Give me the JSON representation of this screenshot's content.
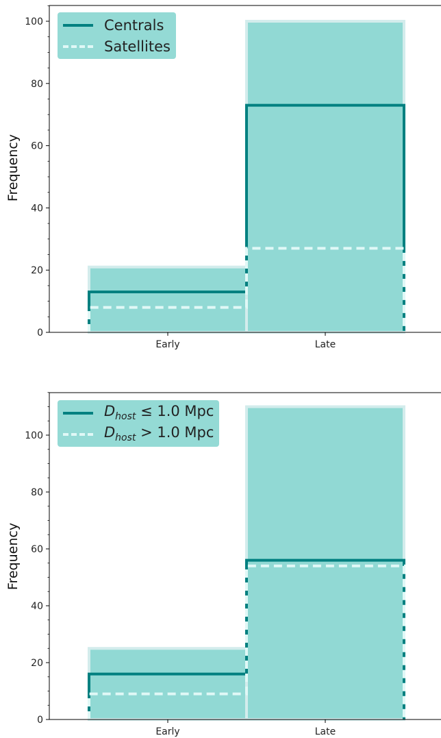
{
  "colors": {
    "bar_fill": "#91d9d4",
    "bar_edge": "#d3ecec",
    "centrals_line": "#008080",
    "satellites_line": "#e0f8f6",
    "legend_bg": "#91d9d4"
  },
  "chart_data": [
    {
      "type": "bar",
      "categories": [
        "Early",
        "Late"
      ],
      "series": [
        {
          "values": [
            21,
            100
          ]
        },
        {
          "name": "Centrals",
          "style": "solid",
          "values": [
            13,
            73
          ]
        },
        {
          "name": "Satellites",
          "style": "dashed",
          "values": [
            8,
            27
          ]
        }
      ],
      "xlabel": "",
      "ylabel": "Frequency",
      "ylim": [
        0,
        105
      ],
      "yticks": [
        0,
        20,
        40,
        60,
        80,
        100
      ],
      "grid": false,
      "legend_placement": "top-left"
    },
    {
      "type": "bar",
      "categories": [
        "Early",
        "Late"
      ],
      "series": [
        {
          "values": [
            25,
            110
          ]
        },
        {
          "name": "D_host ≤ 1.0 Mpc",
          "style": "solid",
          "values": [
            16,
            56
          ]
        },
        {
          "name": "D_host > 1.0 Mpc",
          "style": "dashed",
          "values": [
            9,
            54
          ]
        }
      ],
      "xlabel": "",
      "ylabel": "Frequency",
      "ylim": [
        0,
        115
      ],
      "yticks": [
        0,
        20,
        40,
        60,
        80,
        100
      ],
      "grid": false,
      "legend_placement": "top-left"
    }
  ],
  "legends": [
    {
      "items": [
        {
          "label": "Centrals"
        },
        {
          "label": "Satellites"
        }
      ]
    },
    {
      "items": [
        {
          "prefix": "D",
          "sub": "host",
          "label": "≤ 1.0 Mpc"
        },
        {
          "prefix": "D",
          "sub": "host",
          "label": "> 1.0 Mpc"
        }
      ]
    }
  ]
}
